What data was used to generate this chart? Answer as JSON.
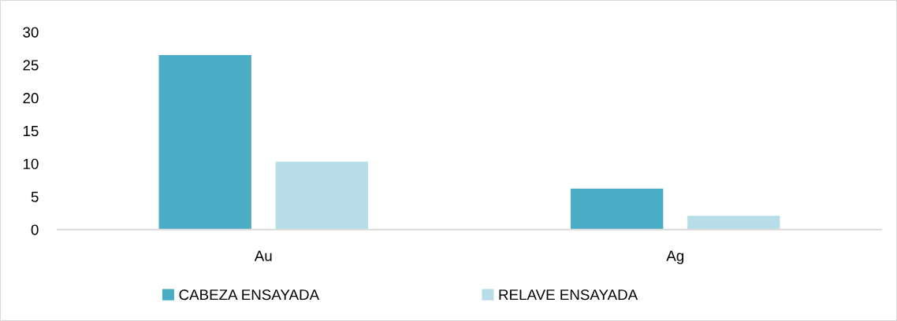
{
  "chart_data": {
    "type": "bar",
    "categories": [
      "Au",
      "Ag"
    ],
    "series": [
      {
        "name": "CABEZA ENSAYADA",
        "color": "#4bacc6",
        "values": [
          26.5,
          6.2
        ]
      },
      {
        "name": "RELAVE ENSAYADA",
        "color": "#b7dee8",
        "values": [
          10.3,
          2.1
        ]
      }
    ],
    "ylim": [
      0,
      30
    ],
    "yticks": [
      0,
      5,
      10,
      15,
      20,
      25,
      30
    ],
    "grid": false,
    "legend": "bottom"
  }
}
